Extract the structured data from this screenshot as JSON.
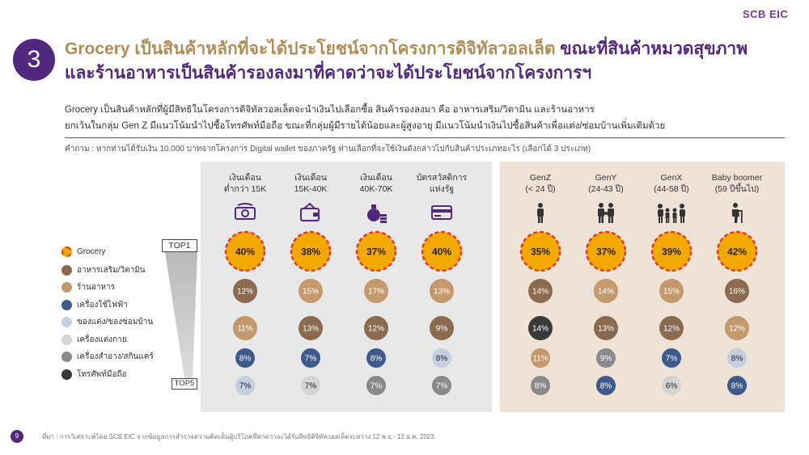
{
  "logo": "SCB EIC",
  "badge_number": "3",
  "title_line1_part1": "Grocery เป็นสินค้าหลักที่จะได้ประโยชน์จากโครงการดิจิทัลวอลเล็ต",
  "title_line1_part2": " ขณะที่สินค้าหมวดสุขภาพ",
  "title_line2": "และร้านอาหารเป็นสินค้ารองลงมาที่คาดว่าจะได้ประโยชน์จากโครงการฯ",
  "body_line1": "Grocery เป็นสินค้าหลักที่ผู้มีสิทธิในโครงการดิจิทัลวอลเล็ตจะนำเงินไปเลือกซื้อ สินค้ารองลงมา คือ อาหารเสริม/วิตามิน และร้านอาหาร",
  "body_line2": "ยกเว้นในกลุ่ม Gen Z มีแนวโน้มนำไปซื้อโทรศัพท์มือถือ ขณะที่กลุ่มผู้มีรายได้น้อยและผู้สูงอายุ มีแนวโน้มนำเงินไปซื้อสินค้าเพื่อแต่ง/ซ่อมบ้านเพิ่มเติมด้วย",
  "question": "คำถาม : หากท่านได้รับเงิน 10,000 บาทจากโครงการ Digital wallet ของภาครัฐ ท่านเลือกที่จะใช้เงินดังกล่าวไปกับสินค้าประเภทอะไร (เลือกได้ 3 ประเภท)",
  "top1_label": "TOP1",
  "top5_label": "TOP5",
  "footnote": "ที่มา : การวิเคราะห์โดย SCB EIC จากข้อมูลการสำรวจความคิดเห็นผู้บริโภคที่คาดว่าจะได้รับสิทธิดิจิทัลวอลเล็ตระหว่าง 12 พ.ย.- 12 ธ.ค. 2023",
  "page_number": "9",
  "colors": {
    "grocery": "#f4a900",
    "grocery_border": "#e03a2a",
    "supplement": "#8b6b4f",
    "restaurant": "#c49a6c",
    "appliance": "#3d5a8a",
    "home_repair": "#c5cfe0",
    "cosmetics": "#d4d4d4",
    "personal_care": "#8a8a8a",
    "mobile": "#3a3a3a",
    "purple": "#51287d",
    "gold": "#b08d57"
  },
  "chart_data": {
    "type": "table",
    "legend": [
      {
        "name": "Grocery",
        "color_key": "grocery"
      },
      {
        "name": "อาหารเสริม/วิตามิน",
        "color_key": "supplement"
      },
      {
        "name": "ร้านอาหาร",
        "color_key": "restaurant"
      },
      {
        "name": "เครื่องใช้ไฟฟ้า",
        "color_key": "appliance"
      },
      {
        "name": "ของแต่ง/ของซ่อมบ้าน",
        "color_key": "home_repair"
      },
      {
        "name": "เครื่องแต่งกาย",
        "color_key": "cosmetics"
      },
      {
        "name": "เครื่องสำอาง/สกินแคร์",
        "color_key": "personal_care"
      },
      {
        "name": "โทรศัพท์มือถือ",
        "color_key": "mobile"
      }
    ],
    "columns": [
      {
        "label_line1": "เงินเดือน",
        "label_line2": "ต่ำกว่า 15K",
        "icon": "money-icon",
        "group": "income",
        "ranks": [
          {
            "value": "40%",
            "color_key": "grocery"
          },
          {
            "value": "12%",
            "color_key": "supplement"
          },
          {
            "value": "11%",
            "color_key": "restaurant"
          },
          {
            "value": "8%",
            "color_key": "appliance"
          },
          {
            "value": "7%",
            "color_key": "home_repair"
          }
        ]
      },
      {
        "label_line1": "เงินเดือน",
        "label_line2": "15K-40K",
        "icon": "wallet-icon",
        "group": "income",
        "ranks": [
          {
            "value": "38%",
            "color_key": "grocery"
          },
          {
            "value": "15%",
            "color_key": "restaurant"
          },
          {
            "value": "13%",
            "color_key": "supplement"
          },
          {
            "value": "7%",
            "color_key": "appliance"
          },
          {
            "value": "7%",
            "color_key": "cosmetics"
          }
        ]
      },
      {
        "label_line1": "เงินเดือน",
        "label_line2": "40K-70K",
        "icon": "money-bag-icon",
        "group": "income",
        "ranks": [
          {
            "value": "37%",
            "color_key": "grocery"
          },
          {
            "value": "17%",
            "color_key": "restaurant"
          },
          {
            "value": "12%",
            "color_key": "supplement"
          },
          {
            "value": "8%",
            "color_key": "appliance"
          },
          {
            "value": "7%",
            "color_key": "personal_care"
          }
        ]
      },
      {
        "label_line1": "บัตรสวัสดิการ",
        "label_line2": "แห่งรัฐ",
        "icon": "card-icon",
        "group": "income",
        "ranks": [
          {
            "value": "40%",
            "color_key": "grocery"
          },
          {
            "value": "13%",
            "color_key": "restaurant"
          },
          {
            "value": "9%",
            "color_key": "supplement"
          },
          {
            "value": "8%",
            "color_key": "home_repair"
          },
          {
            "value": "7%",
            "color_key": "personal_care"
          }
        ]
      },
      {
        "label_line1": "GenZ",
        "label_line2": "(< 24 ปี)",
        "icon": "person-icon",
        "group": "age",
        "ranks": [
          {
            "value": "35%",
            "color_key": "grocery"
          },
          {
            "value": "14%",
            "color_key": "supplement"
          },
          {
            "value": "14%",
            "color_key": "mobile"
          },
          {
            "value": "11%",
            "color_key": "restaurant"
          },
          {
            "value": "8%",
            "color_key": "personal_care"
          }
        ]
      },
      {
        "label_line1": "GenY",
        "label_line2": "(24-43 ปี)",
        "icon": "family-icon",
        "group": "age",
        "ranks": [
          {
            "value": "37%",
            "color_key": "grocery"
          },
          {
            "value": "14%",
            "color_key": "restaurant"
          },
          {
            "value": "13%",
            "color_key": "supplement"
          },
          {
            "value": "9%",
            "color_key": "personal_care"
          },
          {
            "value": "8%",
            "color_key": "appliance"
          }
        ]
      },
      {
        "label_line1": "GenX",
        "label_line2": "(44-58 ปี)",
        "icon": "big-family-icon",
        "group": "age",
        "ranks": [
          {
            "value": "39%",
            "color_key": "grocery"
          },
          {
            "value": "15%",
            "color_key": "restaurant"
          },
          {
            "value": "12%",
            "color_key": "supplement"
          },
          {
            "value": "7%",
            "color_key": "appliance"
          },
          {
            "value": "6%",
            "color_key": "cosmetics"
          }
        ]
      },
      {
        "label_line1": "Baby boomer",
        "label_line2": "(59 ปีขึ้นไป)",
        "icon": "elderly-icon",
        "group": "age",
        "ranks": [
          {
            "value": "42%",
            "color_key": "grocery"
          },
          {
            "value": "16%",
            "color_key": "supplement"
          },
          {
            "value": "12%",
            "color_key": "restaurant"
          },
          {
            "value": "8%",
            "color_key": "home_repair"
          },
          {
            "value": "8%",
            "color_key": "appliance"
          }
        ]
      }
    ]
  }
}
